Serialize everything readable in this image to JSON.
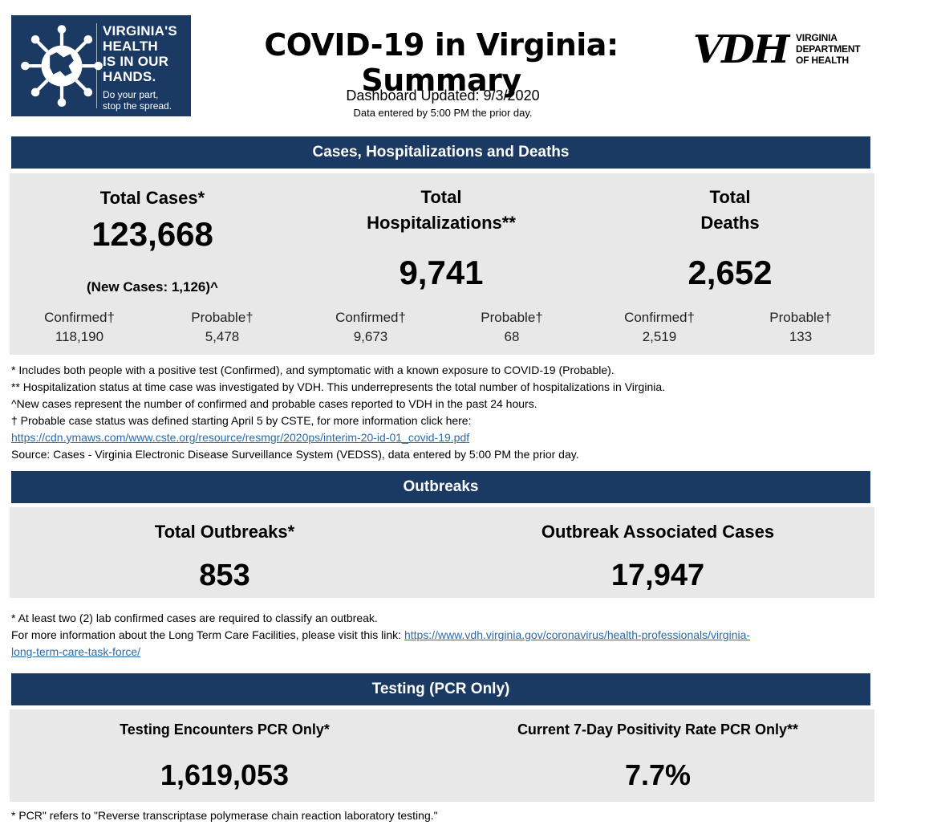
{
  "header": {
    "logo_lines": [
      "VIRGINIA'S",
      "HEALTH",
      "IS IN OUR",
      "HANDS."
    ],
    "logo_sub_lines": [
      "Do your part,",
      "stop the spread."
    ],
    "title": "COVID-19 in Virginia: Summary",
    "updated": "Dashboard Updated: 9/3/2020",
    "entered": "Data entered by 5:00 PM the prior day.",
    "vdh_mark": "VDH",
    "vdh_lines": [
      "VIRGINIA",
      "DEPARTMENT",
      "OF HEALTH"
    ]
  },
  "cases_section": {
    "title": "Cases, Hospitalizations and Deaths",
    "total_cases": {
      "label": "Total Cases*",
      "value": "123,668",
      "new_cases": "(New Cases: 1,126)^",
      "confirmed_label": "Confirmed†",
      "confirmed_value": "118,190",
      "probable_label": "Probable†",
      "probable_value": "5,478"
    },
    "hospitalizations": {
      "label_line1": "Total",
      "label_line2": "Hospitalizations**",
      "value": "9,741",
      "confirmed_label": "Confirmed†",
      "confirmed_value": "9,673",
      "probable_label": "Probable†",
      "probable_value": "68"
    },
    "deaths": {
      "label_line1": "Total",
      "label_line2": "Deaths",
      "value": "2,652",
      "confirmed_label": "Confirmed†",
      "confirmed_value": "2,519",
      "probable_label": "Probable†",
      "probable_value": "133"
    },
    "notes": [
      "* Includes both people with a positive test (Confirmed), and symptomatic with a known exposure to COVID-19 (Probable).",
      "** Hospitalization status at time case was investigated by VDH. This underrepresents the total number of hospitalizations in Virginia.",
      "^New cases represent the number of confirmed and probable cases reported to VDH in the past 24 hours.",
      "† Probable case status was defined starting April 5 by CSTE, for more information click here:"
    ],
    "link": "https://cdn.ymaws.com/www.cste.org/resource/resmgr/2020ps/interim-20-id-01_covid-19.pdf",
    "source": "Source:  Cases - Virginia Electronic Disease Surveillance System (VEDSS), data entered by 5:00 PM the prior day."
  },
  "outbreaks_section": {
    "title": "Outbreaks",
    "total_label": "Total Outbreaks*",
    "total_value": "853",
    "cases_label": "Outbreak Associated Cases",
    "cases_value": "17,947",
    "note1": "* At least two (2) lab confirmed cases are required to classify an outbreak.",
    "note2_prefix": "For more information about the Long Term Care Facilities, please visit this link: ",
    "link_part1": "https://www.vdh.virginia.gov/coronavirus/health-professionals/virginia-",
    "link_part2": "long-term-care-task-force/"
  },
  "testing_section": {
    "title": "Testing (PCR Only)",
    "encounters_label": "Testing Encounters PCR Only*",
    "encounters_value": "1,619,053",
    "positivity_label": "Current 7-Day Positivity Rate PCR Only**",
    "positivity_value": "7.7%",
    "note": "* PCR\" refers to \"Reverse transcriptase polymerase chain reaction laboratory testing.\""
  },
  "colors": {
    "navy": "#1b3a63",
    "panel": "#e8e8e8",
    "link": "#2b6aa8"
  }
}
